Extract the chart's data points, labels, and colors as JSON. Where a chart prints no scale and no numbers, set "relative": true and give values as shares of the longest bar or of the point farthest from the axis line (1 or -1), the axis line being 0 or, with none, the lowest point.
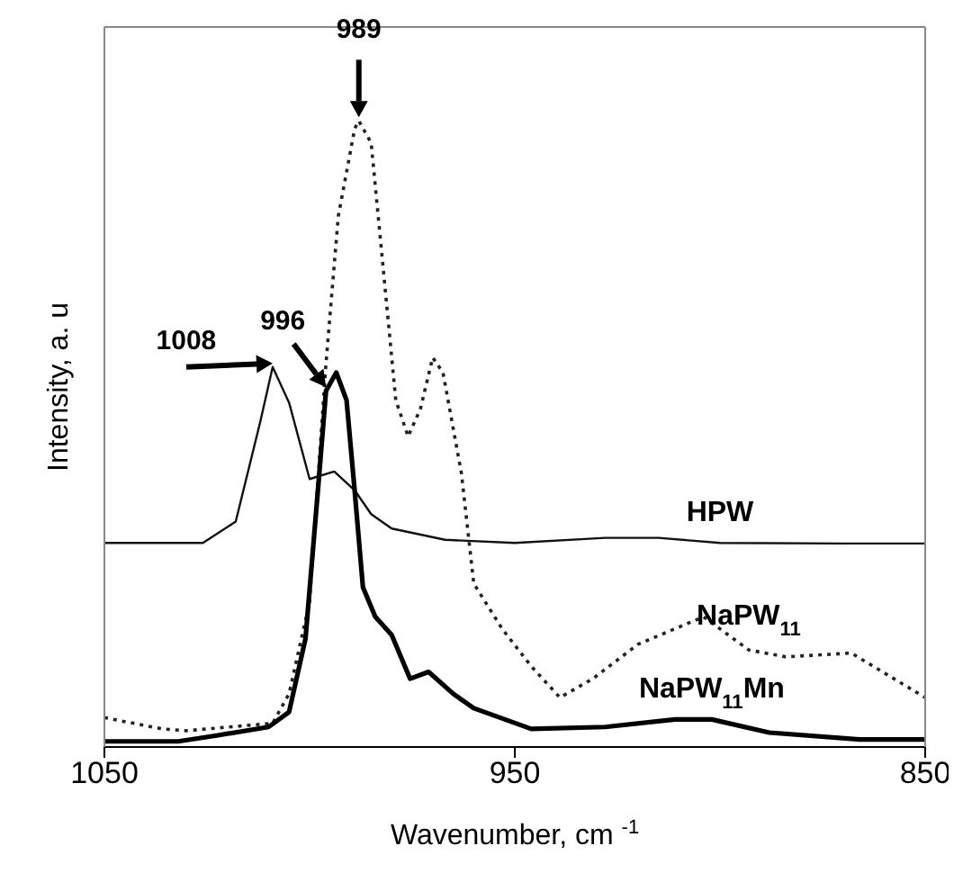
{
  "chart_data": {
    "type": "line",
    "relative": true,
    "xlabel": "Wavenumber, cm $^{-1}$",
    "ylabel": "Intensity, a. u",
    "xlim": [
      1050,
      850
    ],
    "xticks": [
      1050,
      950,
      850
    ],
    "marker": "none",
    "series": [
      {
        "name": "HPW",
        "color": "#111111",
        "line_style": "solid",
        "x": [
          1050,
          1026,
          1018,
          1012,
          1009,
          1005,
          1000,
          994,
          989,
          985,
          980,
          967,
          950,
          928,
          915,
          900,
          870,
          850
        ],
        "values": [
          0.326,
          0.326,
          0.36,
          0.52,
          0.607,
          0.55,
          0.428,
          0.44,
          0.41,
          0.372,
          0.349,
          0.331,
          0.326,
          0.334,
          0.334,
          0.326,
          0.325,
          0.325
        ]
      },
      {
        "name": "NaPW$_{11}$",
        "color": "#222222",
        "line_style": "dotted",
        "x": [
          1050,
          1036,
          1030,
          1009,
          1005,
          1000,
          996,
          993,
          989,
          988,
          985,
          982,
          979,
          976,
          973,
          970,
          967.5,
          963,
          960,
          953,
          946,
          939,
          931,
          920,
          904,
          893,
          884,
          868,
          850
        ],
        "values": [
          0.047,
          0.029,
          0.026,
          0.038,
          0.085,
          0.232,
          0.613,
          0.848,
          0.988,
          1,
          0.965,
          0.76,
          0.554,
          0.496,
          0.54,
          0.622,
          0.598,
          0.437,
          0.261,
          0.188,
          0.129,
          0.079,
          0.109,
          0.164,
          0.208,
          0.155,
          0.144,
          0.15,
          0.079
        ]
      },
      {
        "name": "NaPW$_{11}$Mn",
        "color": "#000000",
        "line_style": "solid",
        "x": [
          1050,
          1032,
          1023,
          1010,
          1005,
          1001,
          998,
          996,
          993.5,
          991,
          989,
          987,
          984,
          980,
          975.5,
          971,
          965,
          960,
          946,
          928,
          911,
          902,
          888,
          866,
          850
        ],
        "values": [
          0.009,
          0.009,
          0.018,
          0.032,
          0.056,
          0.173,
          0.408,
          0.569,
          0.598,
          0.554,
          0.408,
          0.255,
          0.208,
          0.179,
          0.109,
          0.12,
          0.085,
          0.062,
          0.029,
          0.032,
          0.044,
          0.044,
          0.023,
          0.012,
          0.012
        ]
      }
    ],
    "annotations": [
      {
        "text": "989",
        "x": 988,
        "y": 1
      },
      {
        "text": "996",
        "x": 996,
        "y": 0.569
      },
      {
        "text": "1008",
        "x": 1009,
        "y": 0.607
      }
    ]
  }
}
